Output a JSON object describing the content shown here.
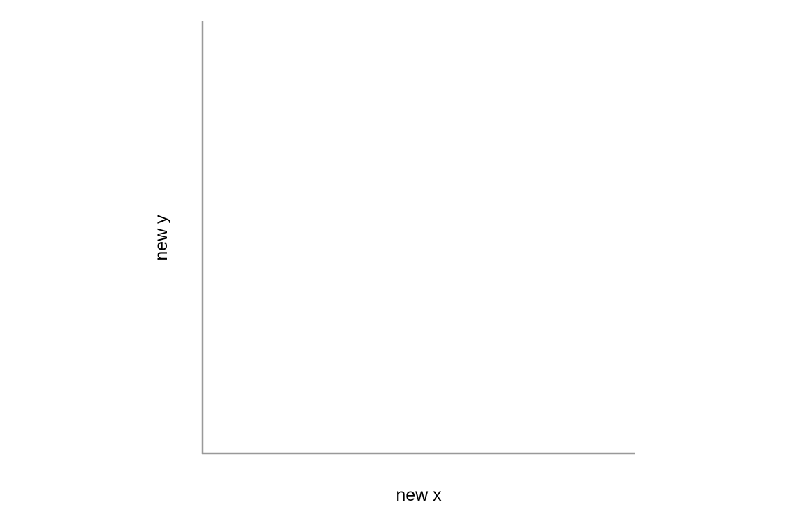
{
  "chart_data": {
    "type": "scatter",
    "title": "",
    "xlabel": "new x",
    "ylabel": "new y",
    "series": [],
    "grid": false,
    "axis_color": "#999999",
    "background": "#ffffff"
  }
}
